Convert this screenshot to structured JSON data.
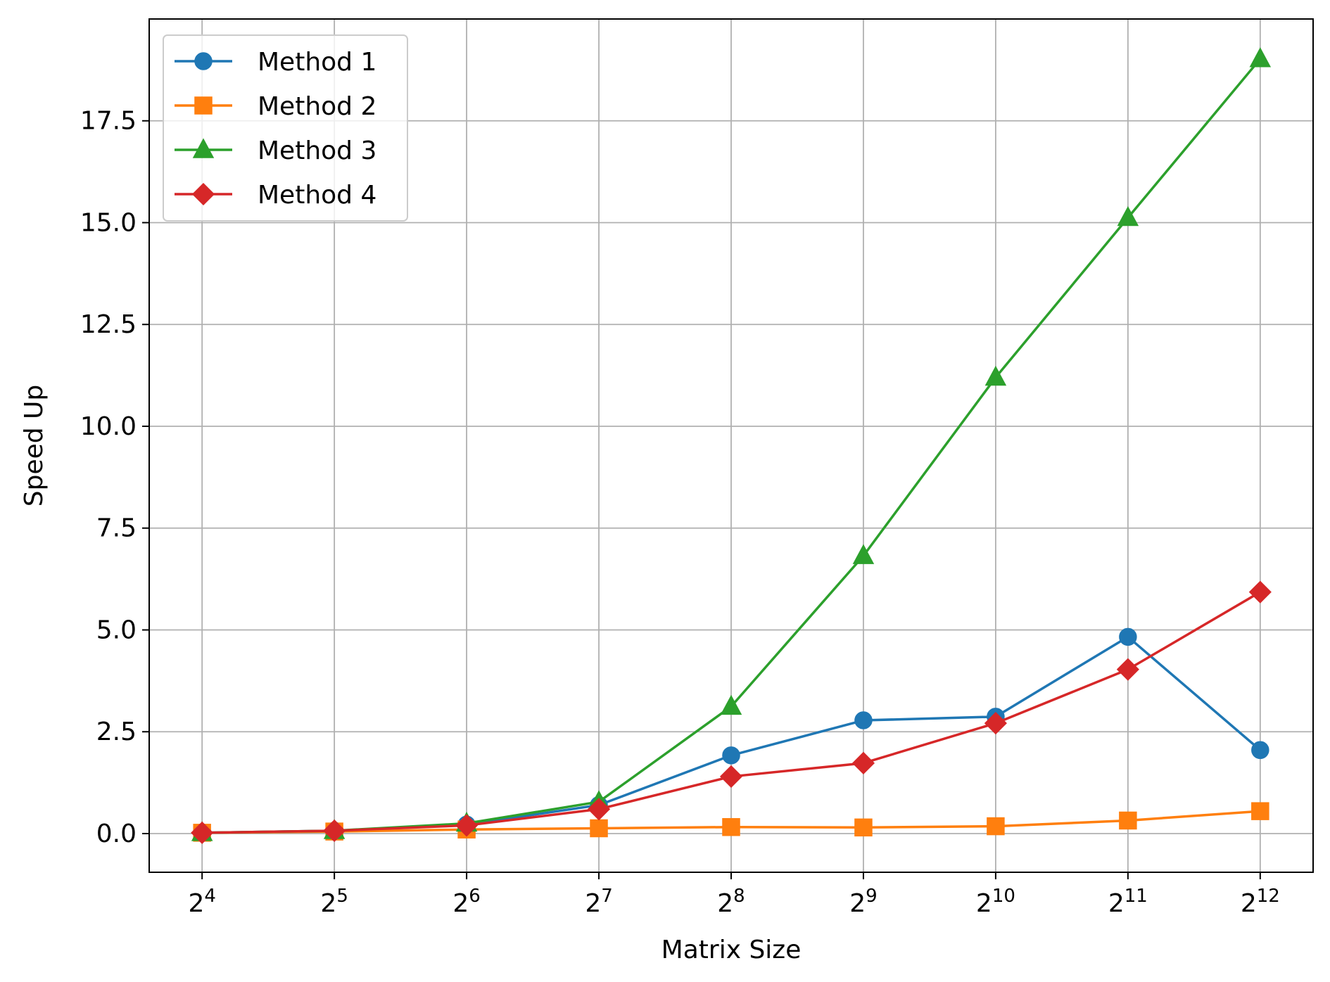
{
  "chart_data": {
    "type": "line",
    "title": "",
    "xlabel": "Matrix Size",
    "ylabel": "Speed Up",
    "x": [
      4,
      5,
      6,
      7,
      8,
      9,
      10,
      11,
      12
    ],
    "x_tick_labels": [
      {
        "base": "2",
        "exp": "4"
      },
      {
        "base": "2",
        "exp": "5"
      },
      {
        "base": "2",
        "exp": "6"
      },
      {
        "base": "2",
        "exp": "7"
      },
      {
        "base": "2",
        "exp": "8"
      },
      {
        "base": "2",
        "exp": "9"
      },
      {
        "base": "2",
        "exp": "10"
      },
      {
        "base": "2",
        "exp": "11"
      },
      {
        "base": "2",
        "exp": "12"
      }
    ],
    "x_scale": "log2",
    "xlim": [
      3.6,
      12.4
    ],
    "ylim": [
      -0.95,
      20.0
    ],
    "y_ticks": [
      0.0,
      2.5,
      5.0,
      7.5,
      10.0,
      12.5,
      15.0,
      17.5
    ],
    "y_tick_labels": [
      "0.0",
      "2.5",
      "5.0",
      "7.5",
      "10.0",
      "12.5",
      "15.0",
      "17.5"
    ],
    "grid": true,
    "legend_position": "top-left",
    "series": [
      {
        "name": "Method 1",
        "color": "#1f77b4",
        "marker": "circle",
        "values": [
          0.02,
          0.07,
          0.22,
          0.7,
          1.92,
          2.78,
          2.87,
          4.83,
          2.05
        ]
      },
      {
        "name": "Method 2",
        "color": "#ff7f0e",
        "marker": "square",
        "values": [
          0.02,
          0.05,
          0.1,
          0.13,
          0.16,
          0.15,
          0.18,
          0.32,
          0.55
        ]
      },
      {
        "name": "Method 3",
        "color": "#2ca02c",
        "marker": "triangle",
        "values": [
          0.02,
          0.07,
          0.25,
          0.78,
          3.12,
          6.82,
          11.2,
          15.12,
          19.02
        ]
      },
      {
        "name": "Method 4",
        "color": "#d62728",
        "marker": "diamond",
        "values": [
          0.02,
          0.07,
          0.2,
          0.6,
          1.4,
          1.73,
          2.71,
          4.03,
          5.93
        ]
      }
    ]
  }
}
